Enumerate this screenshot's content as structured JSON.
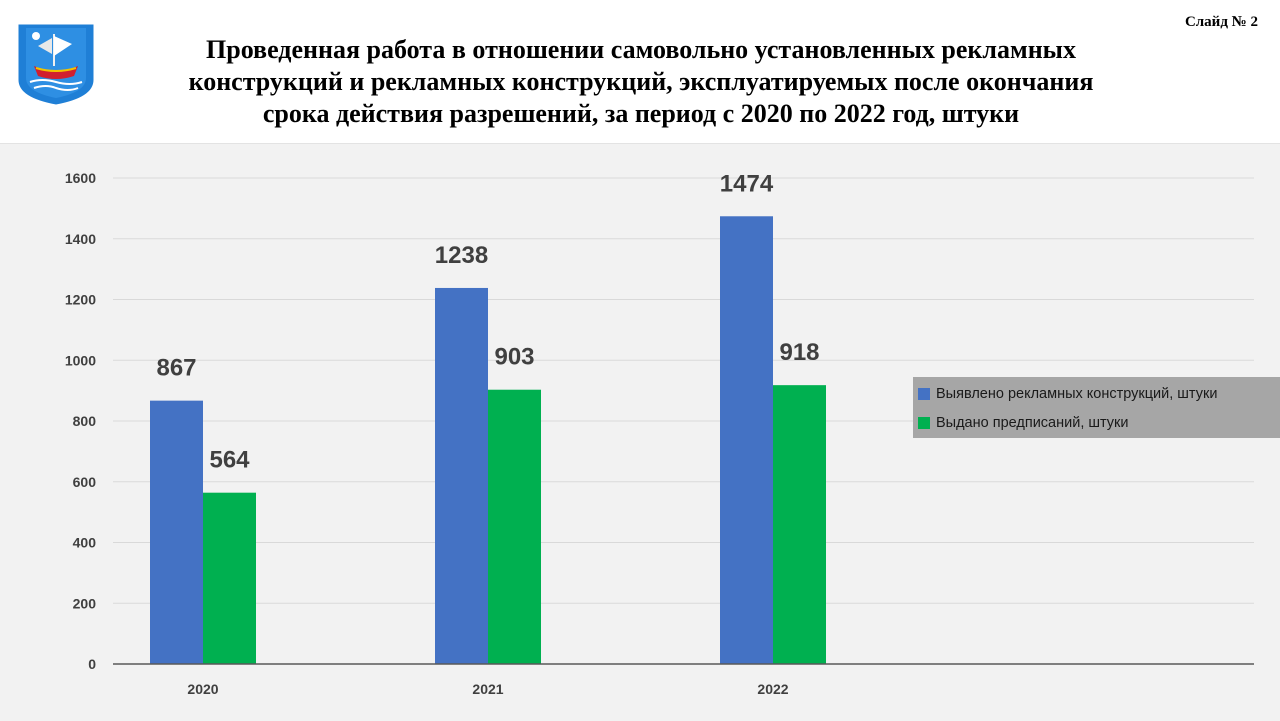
{
  "slide": {
    "number_label": "Слайд № 2",
    "title_lines": [
      "Проведенная работа в отношении самовольно установленных рекламных",
      "конструкций и рекламных конструкций, эксплуатируемых после окончания",
      "срока действия разрешений, за период с 2020 по 2022 год, штуки"
    ],
    "logo_icon": "city-coat-of-arms-ship-icon"
  },
  "colors": {
    "series_1": "#4472c4",
    "series_2": "#00b050",
    "plot_background": "#f2f2f2",
    "legend_background": "#a6a6a6",
    "gridline": "#d9d9d9",
    "axis_line": "#595959"
  },
  "chart_data": {
    "type": "bar",
    "categories": [
      "2020",
      "2021",
      "2022"
    ],
    "series": [
      {
        "name": "Выявлено рекламных конструкций, штуки",
        "values": [
          867,
          1238,
          1474
        ]
      },
      {
        "name": "Выдано предписаний,  штуки",
        "values": [
          564,
          903,
          918
        ]
      }
    ],
    "data_labels": [
      [
        "867",
        "1238",
        "1474"
      ],
      [
        "564",
        "903",
        "918"
      ]
    ],
    "ylim": [
      0,
      1600
    ],
    "yticks": [
      "0",
      "200",
      "400",
      "600",
      "800",
      "1000",
      "1200",
      "1400",
      "1600"
    ],
    "grid": true,
    "legend_position": "right",
    "title": "",
    "xlabel": "",
    "ylabel": ""
  }
}
